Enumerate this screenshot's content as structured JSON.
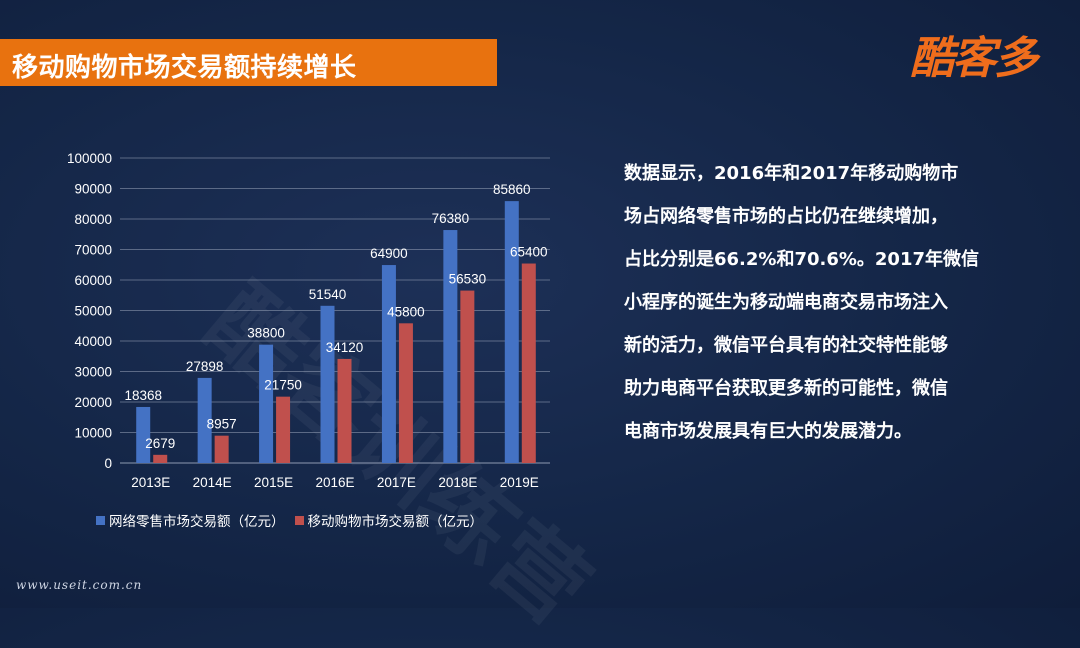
{
  "slide": {
    "title": "移动购物市场交易额持续增长",
    "logo": "酷客多",
    "watermark": "酷客训练营",
    "footer": "www.useit.com.cn",
    "paragraph_lines": [
      "数据显示，2016年和2017年移动购物市",
      "场占网络零售市场的占比仍在继续增加，",
      "占比分别是66.2%和70.6%。2017年微信",
      "小程序的诞生为移动端电商交易市场注入",
      "新的活力，微信平台具有的社交特性能够",
      "助力电商平台获取更多新的可能性，微信",
      "电商市场发展具有巨大的发展潜力。"
    ]
  },
  "colors": {
    "accent": "#e8720f",
    "series_1": "#4472c4",
    "series_2": "#c0504d",
    "background": "#142647"
  },
  "chart_data": {
    "type": "bar",
    "categories": [
      "2013E",
      "2014E",
      "2015E",
      "2016E",
      "2017E",
      "2018E",
      "2019E"
    ],
    "series": [
      {
        "name": "网络零售市场交易额（亿元）",
        "values": [
          18368,
          27898,
          38800,
          51540,
          64900,
          76380,
          85860
        ]
      },
      {
        "name": "移动购物市场交易额（亿元）",
        "values": [
          2679,
          8957,
          21750,
          34120,
          45800,
          56530,
          65400
        ]
      }
    ],
    "ylim": [
      0,
      100000
    ],
    "yticks": [
      0,
      10000,
      20000,
      30000,
      40000,
      50000,
      60000,
      70000,
      80000,
      90000,
      100000
    ],
    "grid": true,
    "legend_position": "bottom",
    "data_labels": true,
    "title": "",
    "xlabel": "",
    "ylabel": ""
  }
}
